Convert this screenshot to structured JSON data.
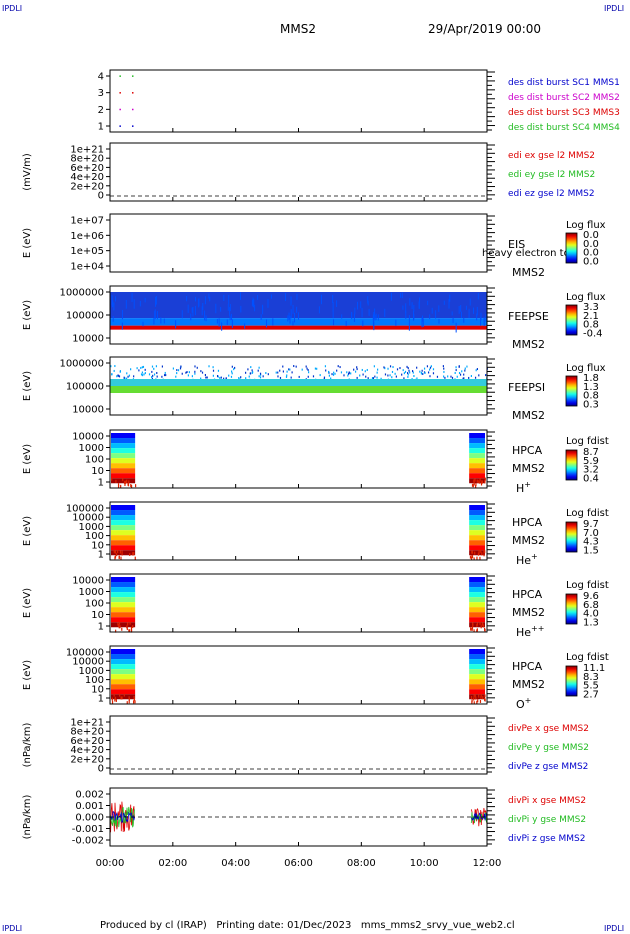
{
  "header": {
    "corner_label": "IPDLI",
    "title": "MMS2",
    "datetime": "29/Apr/2019 00:00"
  },
  "footer": {
    "text": "Produced by cl (IRAP)   Printing date: 01/Dec/2023   mms_mms2_srvy_vue_web2.cl"
  },
  "chart_data": {
    "type": "multi-panel time series / spectrogram",
    "x_axis": {
      "start": "00:00",
      "end": "12:00",
      "tick_labels": [
        "00:00",
        "02:00",
        "04:00",
        "06:00",
        "08:00",
        "10:00",
        "12:00"
      ]
    },
    "colors": {
      "red": "#dd0000",
      "magenta": "#cc00cc",
      "green": "#22bb22",
      "blue": "#0000cc",
      "darkblue": "#000088",
      "dashed_line": "#000000"
    },
    "panels": [
      {
        "id": "burst",
        "type": "scatter",
        "ylabel": "",
        "y_ticks": [
          "4",
          "3",
          "2",
          "1"
        ],
        "legend": [
          {
            "label": "des dist burst SC1 MMS1",
            "color": "#0000cc"
          },
          {
            "label": "des dist burst SC2 MMS2",
            "color": "#cc00cc"
          },
          {
            "label": "des dist burst SC3 MMS3",
            "color": "#dd0000"
          },
          {
            "label": "des dist burst SC4 MMS4",
            "color": "#22bb22"
          }
        ],
        "points": [
          {
            "x_hours": 0.3,
            "y": 4,
            "color": "#22bb22"
          },
          {
            "x_hours": 0.7,
            "y": 4,
            "color": "#22bb22"
          },
          {
            "x_hours": 0.3,
            "y": 3,
            "color": "#dd0000"
          },
          {
            "x_hours": 0.7,
            "y": 3,
            "color": "#dd0000"
          },
          {
            "x_hours": 0.3,
            "y": 2,
            "color": "#cc00cc"
          },
          {
            "x_hours": 0.7,
            "y": 2,
            "color": "#cc00cc"
          },
          {
            "x_hours": 0.3,
            "y": 1,
            "color": "#0000cc"
          },
          {
            "x_hours": 0.7,
            "y": 1,
            "color": "#0000cc"
          }
        ]
      },
      {
        "id": "edi",
        "type": "line",
        "ylabel": "(mV/m)",
        "y_ticks": [
          "1e+21",
          "8e+20",
          "6e+20",
          "4e+20",
          "2e+20",
          "0"
        ],
        "legend": [
          {
            "label": "edi ex gse l2 MMS2",
            "color": "#dd0000"
          },
          {
            "label": "edi ey gse l2 MMS2",
            "color": "#22bb22"
          },
          {
            "label": "edi ez gse l2 MMS2",
            "color": "#0000cc"
          }
        ],
        "zero_line": true
      },
      {
        "id": "eis",
        "type": "heatmap",
        "ylabel": "E (eV)",
        "y_ticks": [
          "1e+07",
          "1e+06",
          "1e+05",
          "1e+04"
        ],
        "instrument": "EIS",
        "spacecraft": "MMS2",
        "extra_label": "heavy electron to",
        "colorbar": {
          "title": "Log flux",
          "values": [
            "0.0",
            "0.0",
            "0.0",
            "0.0"
          ]
        },
        "data": "empty"
      },
      {
        "id": "feepse",
        "type": "heatmap",
        "ylabel": "E (eV)",
        "y_ticks": [
          "1000000",
          "100000",
          "10000"
        ],
        "instrument": "FEEPSE",
        "spacecraft": "MMS2",
        "colorbar": {
          "title": "Log flux",
          "values": [
            "3.3",
            "2.1",
            "0.8",
            "-0.4"
          ]
        },
        "time_range_hours": [
          0,
          12
        ]
      },
      {
        "id": "feepsi",
        "type": "heatmap",
        "ylabel": "E (eV)",
        "y_ticks": [
          "1000000",
          "100000",
          "10000"
        ],
        "instrument": "FEEPSI",
        "spacecraft": "MMS2",
        "colorbar": {
          "title": "Log flux",
          "values": [
            "1.8",
            "1.3",
            "0.8",
            "0.3"
          ]
        },
        "time_range_hours": [
          0,
          12
        ]
      },
      {
        "id": "hpca_h",
        "type": "heatmap",
        "ylabel": "E (eV)",
        "y_ticks": [
          "10000",
          "1000",
          "100",
          "10",
          "1"
        ],
        "instrument": "HPCA",
        "spacecraft": "MMS2",
        "species": "H",
        "species_sup": "+",
        "colorbar": {
          "title": "Log fdist",
          "values": [
            "8.7",
            "5.9",
            "3.2",
            "0.4"
          ]
        },
        "time_ranges_hours": [
          [
            0,
            0.8
          ],
          [
            11.4,
            12
          ]
        ]
      },
      {
        "id": "hpca_he",
        "type": "heatmap",
        "ylabel": "E (eV)",
        "y_ticks": [
          "100000",
          "10000",
          "1000",
          "100",
          "10",
          "1"
        ],
        "instrument": "HPCA",
        "spacecraft": "MMS2",
        "species": "He",
        "species_sup": "+",
        "colorbar": {
          "title": "Log fdist",
          "values": [
            "9.7",
            "7.0",
            "4.3",
            "1.5"
          ]
        },
        "time_ranges_hours": [
          [
            0,
            0.8
          ],
          [
            11.4,
            12
          ]
        ]
      },
      {
        "id": "hpca_he2",
        "type": "heatmap",
        "ylabel": "E (eV)",
        "y_ticks": [
          "10000",
          "1000",
          "100",
          "10",
          "1"
        ],
        "instrument": "HPCA",
        "spacecraft": "MMS2",
        "species": "He",
        "species_sup": "++",
        "colorbar": {
          "title": "Log fdist",
          "values": [
            "9.6",
            "6.8",
            "4.0",
            "1.3"
          ]
        },
        "time_ranges_hours": [
          [
            0,
            0.8
          ],
          [
            11.4,
            12
          ]
        ]
      },
      {
        "id": "hpca_o",
        "type": "heatmap",
        "ylabel": "E (eV)",
        "y_ticks": [
          "100000",
          "10000",
          "1000",
          "100",
          "10",
          "1"
        ],
        "instrument": "HPCA",
        "spacecraft": "MMS2",
        "species": "O",
        "species_sup": "+",
        "colorbar": {
          "title": "Log fdist",
          "values": [
            "11.1",
            "8.3",
            "5.5",
            "2.7"
          ]
        },
        "time_ranges_hours": [
          [
            0,
            0.8
          ],
          [
            11.4,
            12
          ]
        ]
      },
      {
        "id": "divpe",
        "type": "line",
        "ylabel": "(nPa/km)",
        "y_ticks": [
          "1e+21",
          "8e+20",
          "6e+20",
          "4e+20",
          "2e+20",
          "0"
        ],
        "legend": [
          {
            "label": "divPe x gse MMS2",
            "color": "#dd0000"
          },
          {
            "label": "divPe y gse MMS2",
            "color": "#22bb22"
          },
          {
            "label": "divPe z gse MMS2",
            "color": "#0000cc"
          }
        ],
        "zero_line": true
      },
      {
        "id": "divpi",
        "type": "line",
        "ylabel": "(nPa/km)",
        "y_ticks": [
          "0.002",
          "0.001",
          "0.000",
          "-0.001",
          "-0.002"
        ],
        "y_range": [
          -0.0025,
          0.0025
        ],
        "legend": [
          {
            "label": "divPi x gse MMS2",
            "color": "#dd0000"
          },
          {
            "label": "divPi y gse MMS2",
            "color": "#22bb22"
          },
          {
            "label": "divPi z gse MMS2",
            "color": "#0000cc"
          }
        ],
        "zero_line": true,
        "time_ranges_hours": [
          [
            0,
            0.8
          ],
          [
            11.5,
            12
          ]
        ]
      }
    ]
  }
}
